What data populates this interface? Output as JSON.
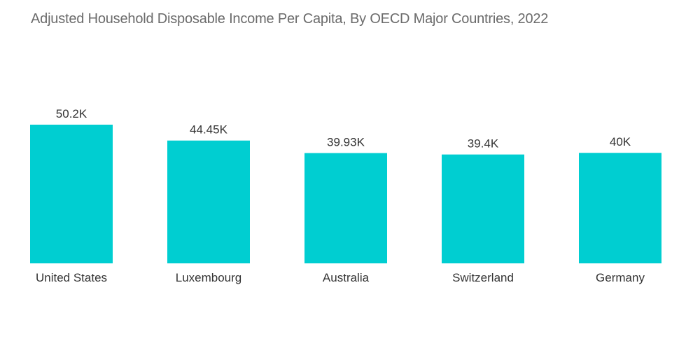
{
  "chart_data": {
    "type": "bar",
    "title": "Adjusted Household Disposable Income Per Capita, By OECD Major Countries, 2022",
    "categories": [
      "United States",
      "Luxembourg",
      "Australia",
      "Switzerland",
      "Germany"
    ],
    "values": [
      50.2,
      44.45,
      39.93,
      39.4,
      40
    ],
    "value_labels": [
      "50.2K",
      "44.45K",
      "39.93K",
      "39.4K",
      "40K"
    ],
    "xlabel": "",
    "ylabel": "",
    "ylim": [
      0,
      50.2
    ],
    "grid": false,
    "legend": "none",
    "bar_color": "#00CED1"
  }
}
